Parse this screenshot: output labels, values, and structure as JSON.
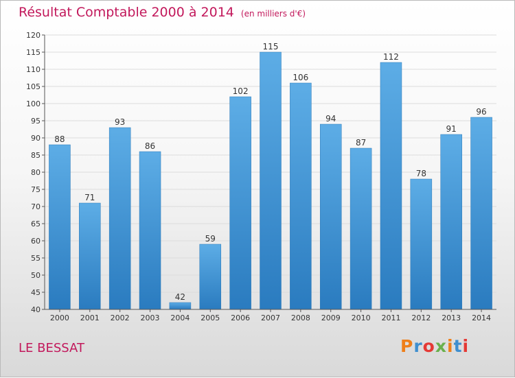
{
  "title": "Résultat Comptable 2000 à 2014",
  "subtitle": "(en milliers d'€)",
  "commune": "LE BESSAT",
  "brand": [
    "P",
    "r",
    "o",
    "x",
    "i",
    "t",
    "i"
  ],
  "colors": {
    "title": "#c2185b",
    "bar_top": "#5dade6",
    "bar_bottom": "#2a7bbf",
    "brand": [
      "#ef7f1a",
      "#3f8fcf",
      "#e53935",
      "#6ab04c",
      "#ef7f1a",
      "#3f8fcf",
      "#e53935"
    ]
  },
  "chart_data": {
    "type": "bar",
    "title": "Résultat Comptable 2000 à 2014 (en milliers d'€)",
    "xlabel": "",
    "ylabel": "",
    "categories": [
      "2000",
      "2001",
      "2002",
      "2003",
      "2004",
      "2005",
      "2006",
      "2007",
      "2008",
      "2009",
      "2010",
      "2011",
      "2012",
      "2013",
      "2014"
    ],
    "values": [
      88,
      71,
      93,
      86,
      42,
      59,
      102,
      115,
      106,
      94,
      87,
      112,
      78,
      91,
      96
    ],
    "ylim": [
      40,
      120
    ],
    "yticks": [
      40,
      45,
      50,
      55,
      60,
      65,
      70,
      75,
      80,
      85,
      90,
      95,
      100,
      105,
      110,
      115,
      120
    ]
  }
}
